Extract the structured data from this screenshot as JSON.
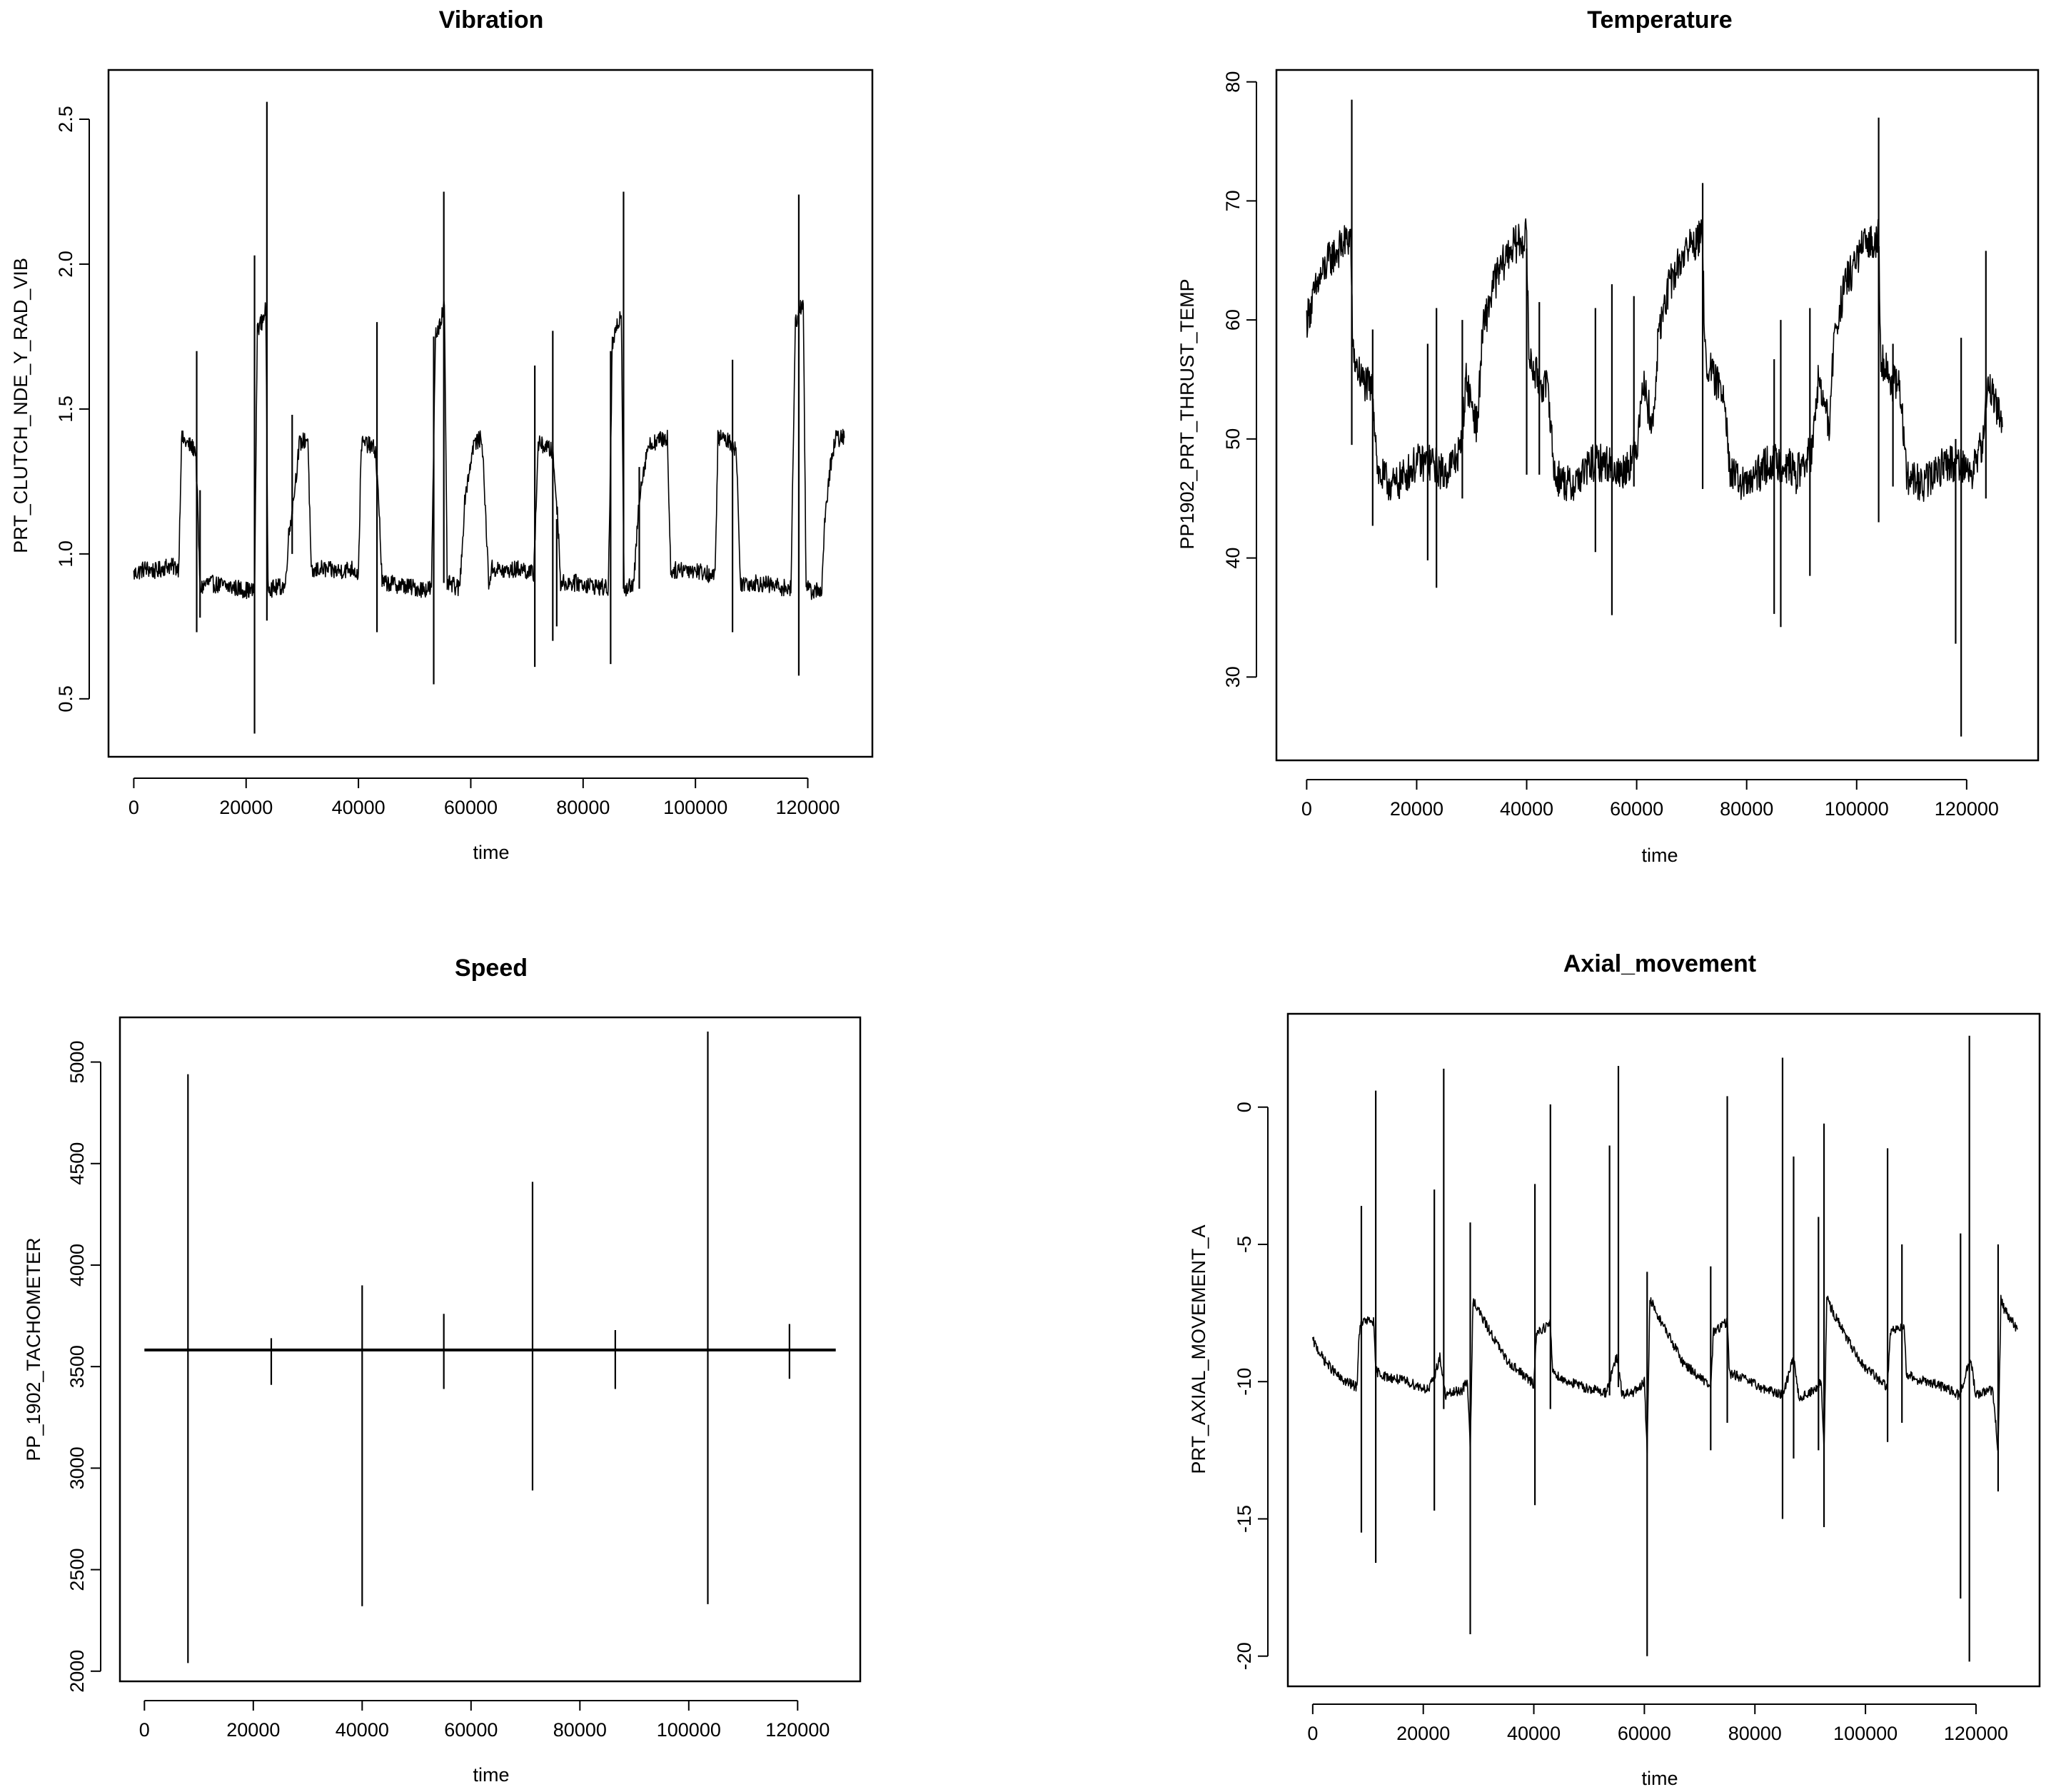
{
  "chart_data": [
    {
      "type": "line",
      "title": "Vibration",
      "xlabel": "time",
      "ylabel": "PRT_CLUTCH_NDE_Y_RAD_VIB",
      "xlim": [
        -4500,
        131500
      ],
      "ylim": [
        0.3,
        2.67
      ],
      "xticks": [
        0,
        20000,
        40000,
        60000,
        80000,
        100000,
        120000
      ],
      "yticks": [
        0.5,
        1.0,
        1.5,
        2.0,
        2.5
      ],
      "ytick_labels": [
        "0.5",
        "1.0",
        "1.5",
        "2.0",
        "2.5"
      ],
      "grid": false,
      "series": [
        {
          "x": [
            0,
            2000,
            4000,
            6000,
            8000,
            8500,
            9500,
            11000,
            11400,
            11800,
            13000,
            16000,
            19000,
            21500,
            22000,
            22800,
            23500,
            23900,
            24500,
            27000,
            27500,
            28500,
            29500,
            31000,
            31600,
            33000,
            36000,
            39000,
            40000,
            40500,
            41500,
            43000,
            43700,
            44200,
            45000,
            48000,
            51000,
            53000,
            53700,
            54800,
            55300,
            55800,
            58000,
            59000,
            60500,
            62000,
            63200,
            63800,
            66000,
            69000,
            71200,
            72000,
            73500,
            74600,
            75500,
            76000,
            79000,
            82000,
            84500,
            85200,
            86300,
            86800,
            87300,
            89000,
            90000,
            91500,
            93000,
            95000,
            95600,
            98000,
            101000,
            103500,
            104000,
            105000,
            106600,
            107300,
            108000,
            111000,
            114000,
            117000,
            117800,
            118700,
            119200,
            119700,
            121000,
            122500,
            123000,
            124000,
            125000,
            126500
          ],
          "y": [
            0.93,
            0.95,
            0.94,
            0.96,
            0.95,
            1.4,
            1.38,
            1.36,
            1.15,
            0.88,
            0.9,
            0.89,
            0.88,
            0.87,
            1.78,
            1.8,
            1.85,
            0.9,
            0.88,
            0.89,
            1.05,
            1.2,
            1.38,
            1.4,
            0.93,
            0.95,
            0.94,
            0.95,
            0.93,
            1.38,
            1.38,
            1.36,
            1.15,
            0.9,
            0.9,
            0.89,
            0.88,
            0.88,
            1.75,
            1.82,
            1.86,
            0.9,
            0.88,
            1.2,
            1.38,
            1.4,
            0.9,
            0.95,
            0.94,
            0.95,
            0.93,
            1.38,
            1.37,
            1.35,
            1.12,
            0.9,
            0.9,
            0.89,
            0.88,
            1.72,
            1.8,
            1.84,
            0.88,
            0.89,
            1.2,
            1.37,
            1.39,
            1.4,
            0.94,
            0.95,
            0.94,
            0.92,
            1.4,
            1.4,
            1.38,
            1.35,
            0.9,
            0.9,
            0.89,
            0.88,
            1.8,
            1.85,
            1.88,
            0.88,
            0.87,
            0.88,
            1.1,
            1.3,
            1.4,
            1.4
          ],
          "noise": 0.03,
          "spikes": [
            [
              21500,
              0.38,
              2.03
            ],
            [
              11200,
              0.73,
              1.7
            ],
            [
              11800,
              0.78,
              1.22
            ],
            [
              23700,
              0.77,
              2.56
            ],
            [
              28200,
              1.0,
              1.48
            ],
            [
              43300,
              0.73,
              1.8
            ],
            [
              53400,
              0.55,
              1.75
            ],
            [
              55200,
              0.9,
              2.25
            ],
            [
              71400,
              0.61,
              1.65
            ],
            [
              74600,
              0.7,
              1.77
            ],
            [
              75300,
              0.75,
              1.12
            ],
            [
              84900,
              0.62,
              1.7
            ],
            [
              87200,
              0.88,
              2.25
            ],
            [
              106600,
              0.73,
              1.67
            ],
            [
              118400,
              0.58,
              2.24
            ],
            [
              90000,
              0.88,
              1.3
            ]
          ]
        }
      ]
    },
    {
      "type": "line",
      "title": "Temperature",
      "xlabel": "time",
      "ylabel": "PP1902_PRT_THRUST_TEMP",
      "xlim": [
        -5500,
        133000
      ],
      "ylim": [
        23,
        81
      ],
      "xticks": [
        0,
        20000,
        40000,
        60000,
        80000,
        100000,
        120000
      ],
      "yticks": [
        30,
        40,
        50,
        60,
        70,
        80
      ],
      "ytick_labels": [
        "30",
        "40",
        "50",
        "60",
        "70",
        "80"
      ],
      "grid": false,
      "series": [
        {
          "x": [
            0,
            2000,
            4000,
            6000,
            8000,
            8400,
            10000,
            12000,
            13000,
            16000,
            20000,
            23000,
            25000,
            28000,
            29000,
            31000,
            32000,
            34000,
            37000,
            40000,
            40400,
            42000,
            44000,
            45000,
            48000,
            52000,
            55000,
            57000,
            60000,
            61000,
            63000,
            64000,
            66000,
            69000,
            72000,
            72400,
            74000,
            76000,
            77000,
            80000,
            84000,
            87000,
            89000,
            92000,
            93000,
            95000,
            96000,
            98000,
            101000,
            104000,
            104400,
            106000,
            108000,
            109000,
            112000,
            116000,
            119000,
            121000,
            123000,
            124000,
            126500
          ],
          "y": [
            60,
            63,
            65,
            66,
            67,
            57,
            55,
            54,
            47,
            46,
            48,
            48,
            47,
            49,
            55,
            51,
            59,
            63,
            66,
            67,
            57,
            55,
            54,
            47,
            46,
            48,
            48,
            47,
            49,
            55,
            51,
            59,
            63,
            66,
            67,
            57,
            55,
            54,
            47,
            46,
            48,
            48,
            47,
            49,
            55,
            51,
            59,
            63,
            66,
            67,
            57,
            55,
            54,
            47,
            46,
            48,
            48,
            47,
            50,
            55,
            51
          ],
          "noise": 1.6,
          "spikes": [
            [
              8200,
              49.5,
              78.5
            ],
            [
              12000,
              42.7,
              59.2
            ],
            [
              22000,
              39.8,
              58.0
            ],
            [
              23600,
              37.5,
              61.0
            ],
            [
              28300,
              45.0,
              60.0
            ],
            [
              40000,
              47.0,
              66.0
            ],
            [
              42300,
              47.0,
              61.5
            ],
            [
              52500,
              40.5,
              61.0
            ],
            [
              55500,
              35.2,
              63.0
            ],
            [
              59500,
              46.0,
              62.0
            ],
            [
              72000,
              45.8,
              71.5
            ],
            [
              85000,
              35.3,
              56.7
            ],
            [
              86200,
              34.2,
              60.0
            ],
            [
              91500,
              38.5,
              61.0
            ],
            [
              104000,
              43.0,
              77.0
            ],
            [
              106600,
              46.0,
              58.0
            ],
            [
              118000,
              32.8,
              50.0
            ],
            [
              119000,
              25.0,
              58.5
            ],
            [
              123500,
              45.0,
              65.8
            ]
          ]
        }
      ]
    },
    {
      "type": "line",
      "title": "Speed",
      "xlabel": "time",
      "ylabel": "PP_1902_TACHOMETER",
      "xlim": [
        -4500,
        131500
      ],
      "ylim": [
        1950,
        5220
      ],
      "xticks": [
        0,
        20000,
        40000,
        60000,
        80000,
        100000,
        120000
      ],
      "yticks": [
        2000,
        2500,
        3000,
        3500,
        4000,
        4500,
        5000
      ],
      "ytick_labels": [
        "2000",
        "2500",
        "3000",
        "3500",
        "4000",
        "4500",
        "5000"
      ],
      "grid": false,
      "series": [
        {
          "x": [
            0,
            127000
          ],
          "y": [
            3582,
            3582
          ],
          "noise": 0,
          "spikes": [
            [
              8000,
              2040,
              4940
            ],
            [
              23300,
              3410,
              3640
            ],
            [
              40000,
              2320,
              3900
            ],
            [
              55000,
              3390,
              3760
            ],
            [
              71300,
              2890,
              4410
            ],
            [
              86500,
              3390,
              3680
            ],
            [
              103500,
              2330,
              5150
            ],
            [
              118500,
              3440,
              3710
            ]
          ]
        }
      ]
    },
    {
      "type": "line",
      "title": "Axial_movement",
      "xlabel": "time",
      "ylabel": "PRT_AXIAL_MOVEMENT_A",
      "xlim": [
        -4500,
        131500
      ],
      "ylim": [
        -21.1,
        3.4
      ],
      "xticks": [
        0,
        20000,
        40000,
        60000,
        80000,
        100000,
        120000
      ],
      "yticks": [
        -20,
        -15,
        -10,
        -5,
        0
      ],
      "ytick_labels": [
        "-20",
        "-15",
        "-10",
        "-5",
        "0"
      ],
      "grid": false,
      "series": [
        {
          "x": [
            0,
            2000,
            5000,
            8000,
            8400,
            9000,
            11000,
            11400,
            13000,
            17000,
            21000,
            22000,
            23000,
            24000,
            27000,
            28000,
            28500,
            29000,
            31000,
            35000,
            40000,
            40500,
            43000,
            43400,
            45000,
            49000,
            53000,
            54000,
            55000,
            56000,
            59000,
            60000,
            60500,
            61000,
            63000,
            67000,
            72000,
            72500,
            75000,
            75400,
            77000,
            81000,
            85000,
            86000,
            87000,
            88000,
            91000,
            92000,
            92500,
            93000,
            95000,
            99000,
            104000,
            104500,
            107000,
            107400,
            109000,
            113000,
            117000,
            118000,
            119000,
            120000,
            123000,
            124000,
            124500,
            125000,
            127500
          ],
          "y": [
            -8.5,
            -9.2,
            -9.9,
            -10.2,
            -8.2,
            -7.8,
            -7.8,
            -9.6,
            -9.8,
            -10.0,
            -10.3,
            -9.8,
            -9.1,
            -10.5,
            -10.3,
            -10.0,
            -12.5,
            -7.0,
            -7.8,
            -9.2,
            -10.1,
            -8.2,
            -7.9,
            -9.6,
            -9.9,
            -10.2,
            -10.4,
            -9.8,
            -9.1,
            -10.5,
            -10.3,
            -10.0,
            -12.5,
            -7.0,
            -7.8,
            -9.3,
            -10.2,
            -8.2,
            -7.8,
            -9.7,
            -9.8,
            -10.2,
            -10.5,
            -9.8,
            -9.1,
            -10.6,
            -10.3,
            -10.0,
            -12.5,
            -7.0,
            -7.8,
            -9.3,
            -10.2,
            -8.2,
            -7.9,
            -9.7,
            -9.9,
            -10.1,
            -10.5,
            -9.8,
            -9.2,
            -10.5,
            -10.3,
            -12.5,
            -7.0,
            -7.3,
            -8.1
          ],
          "noise": 0.18,
          "spikes": [
            [
              8800,
              -15.5,
              -3.6
            ],
            [
              11400,
              -16.6,
              0.6
            ],
            [
              22000,
              -14.7,
              -3.0
            ],
            [
              23700,
              -11.0,
              1.4
            ],
            [
              28500,
              -19.2,
              -4.2
            ],
            [
              40200,
              -14.5,
              -2.8
            ],
            [
              43000,
              -11.0,
              0.1
            ],
            [
              53700,
              -10.5,
              -1.4
            ],
            [
              55300,
              -10.2,
              1.5
            ],
            [
              60500,
              -20.0,
              -6.0
            ],
            [
              72000,
              -12.5,
              -5.8
            ],
            [
              75000,
              -11.5,
              0.4
            ],
            [
              85000,
              -15.0,
              1.8
            ],
            [
              87000,
              -12.8,
              -1.8
            ],
            [
              91500,
              -12.5,
              -4.0
            ],
            [
              92500,
              -15.3,
              -0.6
            ],
            [
              104000,
              -12.2,
              -1.5
            ],
            [
              106600,
              -11.5,
              -5.0
            ],
            [
              117200,
              -17.9,
              -4.6
            ],
            [
              118800,
              -20.2,
              2.6
            ],
            [
              124000,
              -14.0,
              -5.0
            ]
          ]
        }
      ]
    }
  ]
}
